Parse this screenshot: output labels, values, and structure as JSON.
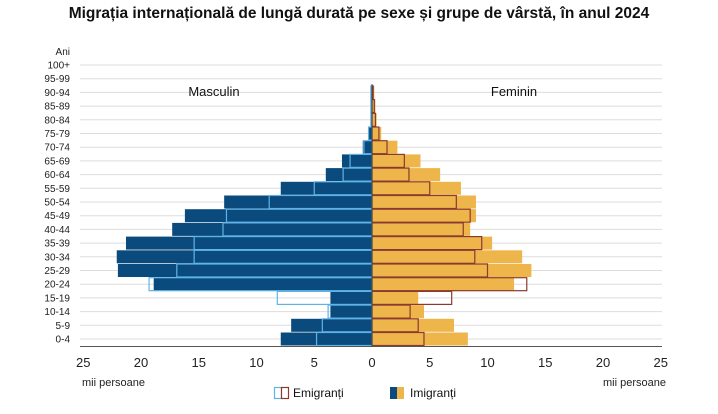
{
  "chart_data": {
    "type": "bar",
    "title": "Migrația internațională de lungă durată pe sexe și grupe de vârstă, în anul 2024",
    "age_axis_label": "Ani",
    "categories": [
      "0-4",
      "5-9",
      "10-14",
      "15-19",
      "20-24",
      "25-29",
      "30-34",
      "35-39",
      "40-44",
      "45-49",
      "50-54",
      "55-59",
      "60-64",
      "65-69",
      "70-74",
      "75-79",
      "80-84",
      "85-89",
      "90-94",
      "95-99",
      "100+"
    ],
    "group_labels": {
      "left": "Masculin",
      "right": "Feminin"
    },
    "x_ticks": [
      25,
      20,
      15,
      10,
      5,
      0,
      5,
      10,
      15,
      20,
      25
    ],
    "xlim": [
      -25,
      25
    ],
    "unit_left": "mii persoane",
    "unit_right": "mii persoane",
    "legend": [
      {
        "key": "emigranti",
        "label": "Emigranți"
      },
      {
        "key": "imigranti",
        "label": "Imigranți"
      }
    ],
    "colors": {
      "male_fill": "#0b4a7d",
      "female_fill": "#eeb54b",
      "male_outline": "#5fb4e6",
      "female_outline": "#8b3a2f",
      "grid": "#dddddd",
      "axis": "#555555"
    },
    "series": [
      {
        "name": "Imigranți",
        "sex": "Masculin",
        "values": [
          7.9,
          7.0,
          3.6,
          3.6,
          18.9,
          22.0,
          22.1,
          21.3,
          17.3,
          16.2,
          12.8,
          7.9,
          4.0,
          2.6,
          0.8,
          0.3,
          0.1,
          0.1,
          0.1,
          0,
          0
        ]
      },
      {
        "name": "Emigranți",
        "sex": "Masculin",
        "values": [
          4.8,
          4.3,
          3.8,
          8.2,
          19.3,
          16.9,
          15.4,
          15.4,
          12.9,
          12.6,
          8.9,
          5.0,
          2.5,
          1.9,
          0.7,
          0.3,
          0.1,
          0.1,
          0.1,
          0,
          0
        ]
      },
      {
        "name": "Imigranți",
        "sex": "Feminin",
        "values": [
          8.3,
          7.1,
          4.5,
          4.0,
          12.3,
          13.8,
          13.0,
          10.4,
          8.5,
          9.0,
          9.0,
          7.7,
          5.9,
          4.2,
          2.2,
          0.8,
          0.4,
          0.3,
          0.2,
          0,
          0
        ]
      },
      {
        "name": "Emigranți",
        "sex": "Feminin",
        "values": [
          4.5,
          4.0,
          3.3,
          6.9,
          13.4,
          10.0,
          8.9,
          9.5,
          7.9,
          8.5,
          7.3,
          5.0,
          3.2,
          2.8,
          1.3,
          0.6,
          0.3,
          0.2,
          0.1,
          0,
          0
        ]
      }
    ],
    "grid": "horizontal"
  }
}
